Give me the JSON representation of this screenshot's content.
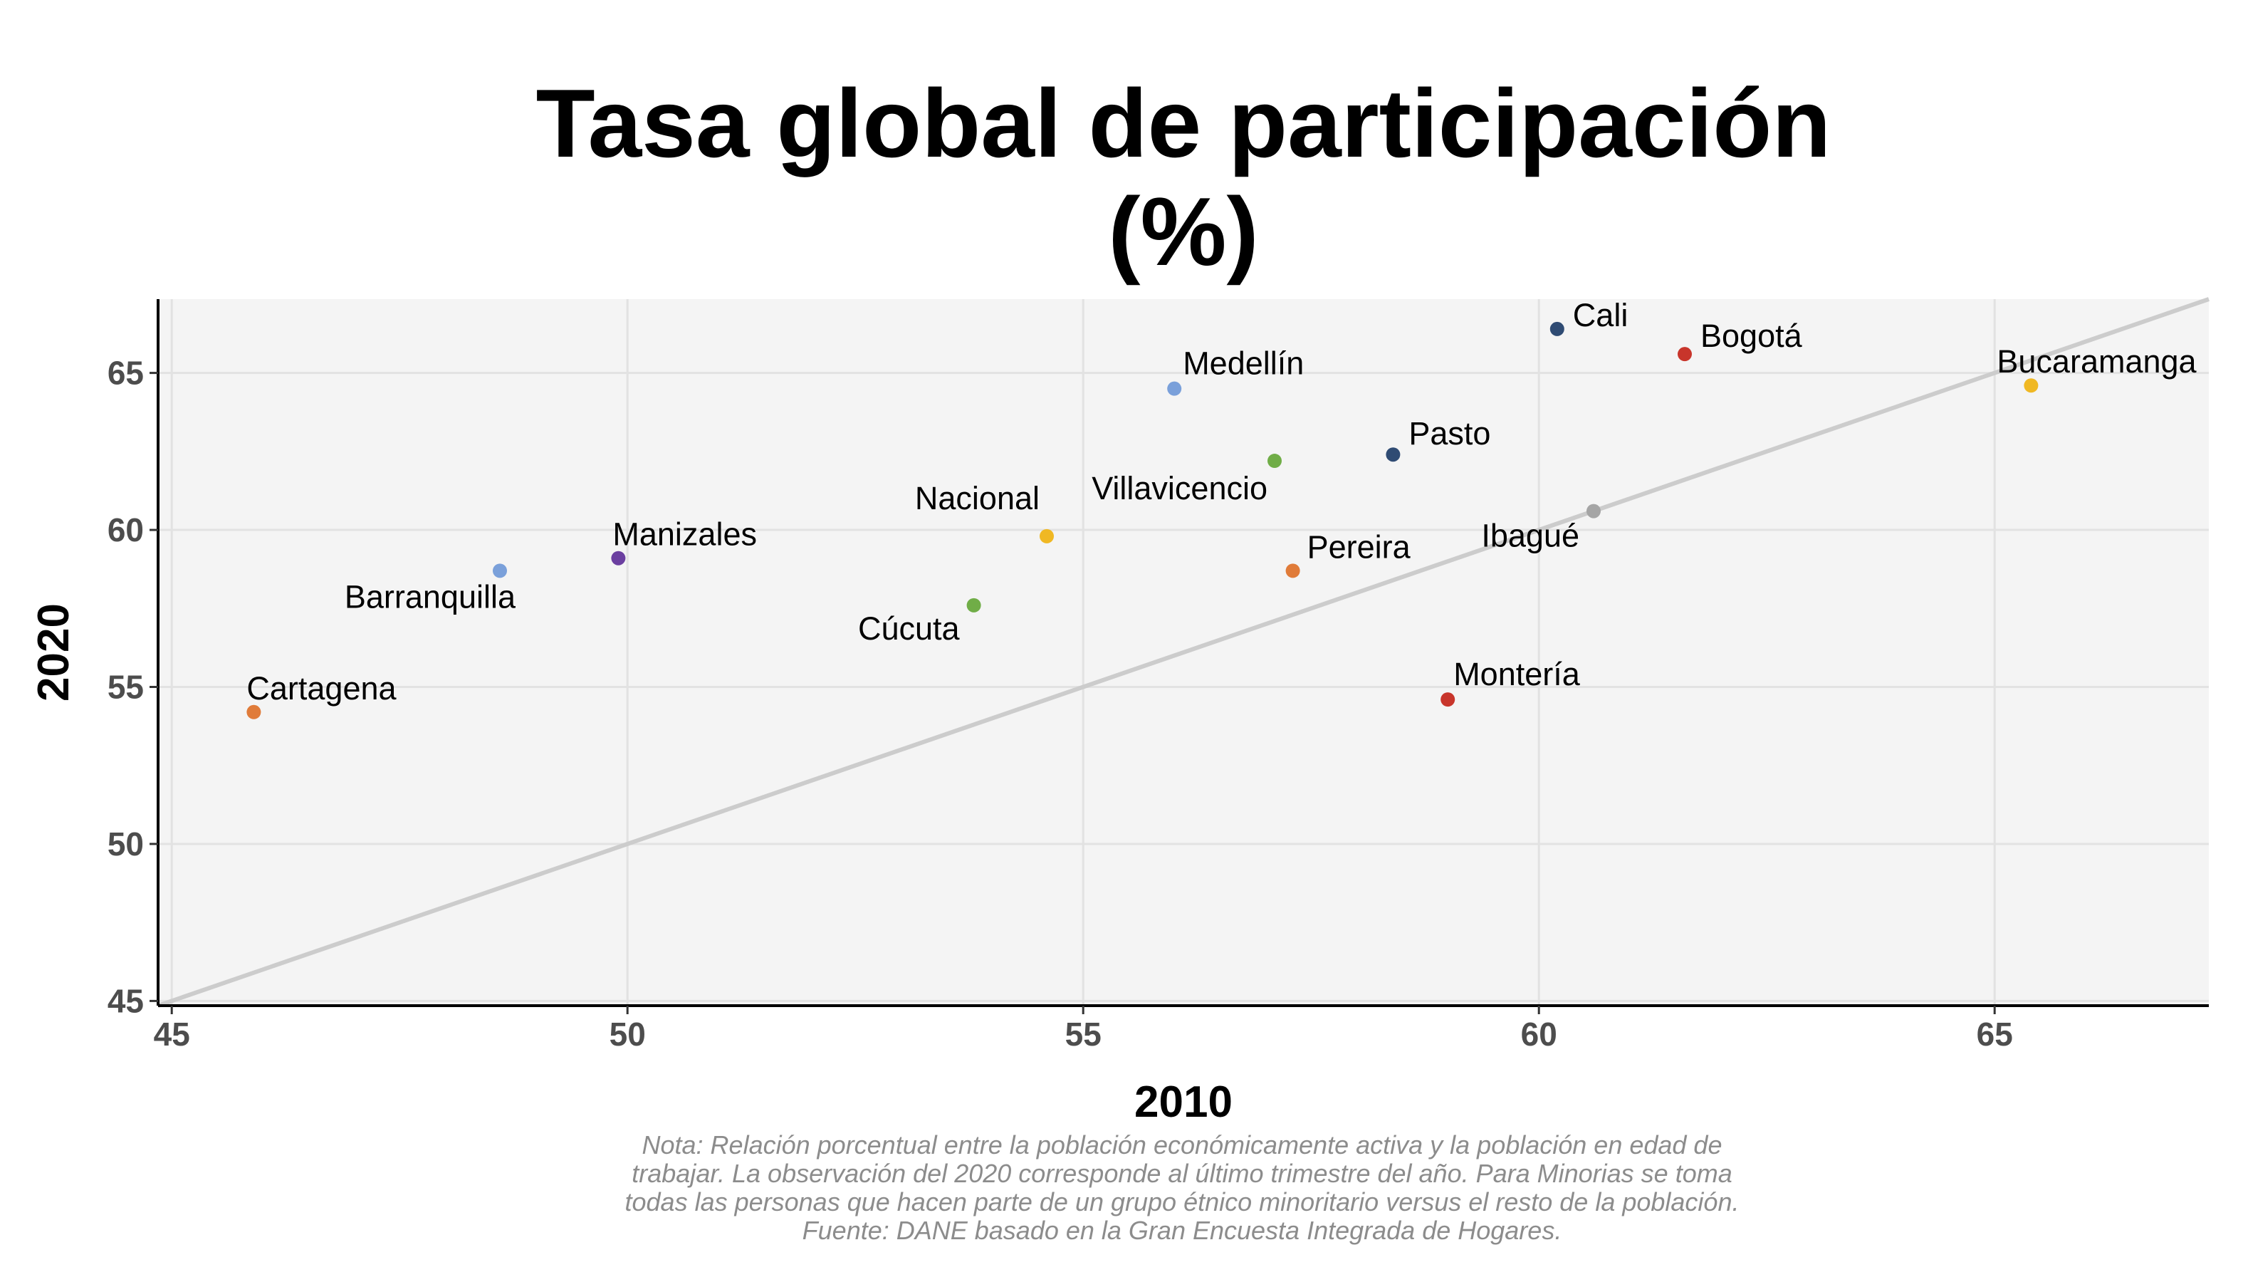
{
  "chart_data": {
    "type": "scatter",
    "title": [
      "Tasa global de participación",
      "(%)"
    ],
    "xlabel": "2010",
    "ylabel": "2020",
    "xlim": [
      44.85,
      67.35
    ],
    "ylim": [
      44.85,
      67.35
    ],
    "xticks": [
      45,
      50,
      55,
      60,
      65
    ],
    "yticks": [
      45,
      50,
      55,
      60,
      65
    ],
    "grid": true,
    "reference_line": "y = x",
    "points": [
      {
        "label": "Cartagena",
        "x": 45.9,
        "y": 54.2,
        "color": "#e07b39"
      },
      {
        "label": "Barranquilla",
        "x": 48.6,
        "y": 58.7,
        "color": "#7aa0da"
      },
      {
        "label": "Manizales",
        "x": 49.9,
        "y": 59.1,
        "color": "#6b3fa0"
      },
      {
        "label": "Cúcuta",
        "x": 53.8,
        "y": 57.6,
        "color": "#70ad47"
      },
      {
        "label": "Nacional",
        "x": 54.6,
        "y": 59.8,
        "color": "#f0b823"
      },
      {
        "label": "Medellín",
        "x": 56.0,
        "y": 64.5,
        "color": "#7aa0da"
      },
      {
        "label": "Villavicencio",
        "x": 57.1,
        "y": 62.2,
        "color": "#70ad47"
      },
      {
        "label": "Pereira",
        "x": 57.3,
        "y": 58.7,
        "color": "#e07b39"
      },
      {
        "label": "Pasto",
        "x": 58.4,
        "y": 62.4,
        "color": "#2f4b73"
      },
      {
        "label": "Montería",
        "x": 59.0,
        "y": 54.6,
        "color": "#c8352b"
      },
      {
        "label": "Cali",
        "x": 60.2,
        "y": 66.4,
        "color": "#2f4b73"
      },
      {
        "label": "Ibagué",
        "x": 60.6,
        "y": 60.6,
        "color": "#a5a5a5"
      },
      {
        "label": "Bogotá",
        "x": 61.6,
        "y": 65.6,
        "color": "#c8352b"
      },
      {
        "label": "Bucaramanga",
        "x": 65.4,
        "y": 64.6,
        "color": "#f0b823"
      }
    ],
    "note": [
      "Nota: Relación porcentual entre la población económicamente activa y la población en edad de",
      "trabajar. La observación del 2020 corresponde al último trimestre del año. Para Minorias se toma",
      "todas las personas que hacen parte de un grupo étnico minoritario versus el resto de la población.",
      "Fuente: DANE basado en la Gran Encuesta Integrada de Hogares."
    ]
  }
}
